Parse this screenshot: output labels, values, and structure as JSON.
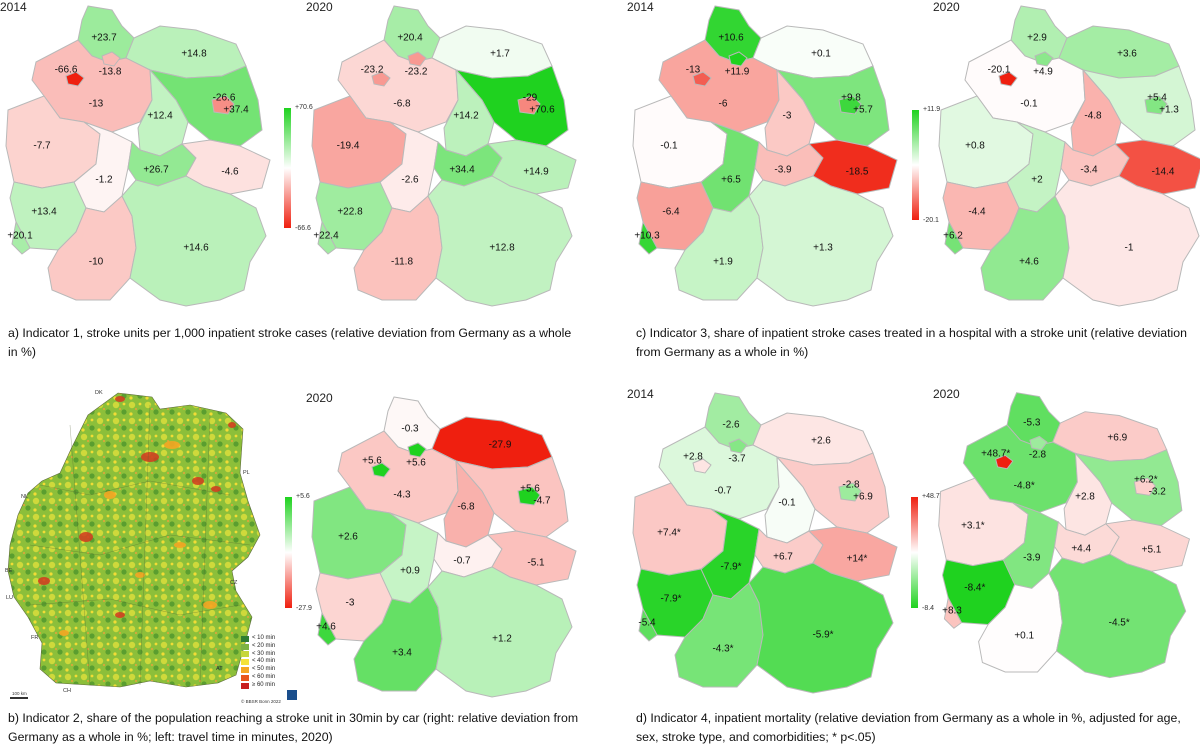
{
  "maps": [
    {
      "id": "a2014",
      "year": "2014",
      "states": {
        "SH": "+23.7",
        "MV": "+14.8",
        "HB": "-66.6",
        "HH": "-13.8",
        "NI": "-13",
        "BB": "+37.4",
        "BE": "-26.6",
        "ST": "+12.4",
        "NW": "-7.7",
        "HE": "-1.2",
        "TH": "+26.7",
        "SN": "-4.6",
        "RP": "+13.4",
        "SL": "+20.1",
        "BW": "-10",
        "BY": "+14.6"
      }
    },
    {
      "id": "a2020",
      "year": "2020",
      "states": {
        "SH": "+20.4",
        "MV": "+1.7",
        "HB": "-23.2",
        "HH": "-23.2",
        "NI": "-6.8",
        "BB": "+70.6",
        "BE": "-29",
        "ST": "+14.2",
        "NW": "-19.4",
        "HE": "-2.6",
        "TH": "+34.4",
        "SN": "+14.9",
        "RP": "+22.8",
        "SL": "+22.4",
        "BW": "-11.8",
        "BY": "+12.8"
      }
    },
    {
      "id": "c2014",
      "year": "2014",
      "states": {
        "SH": "+10.6",
        "MV": "+0.1",
        "HB": "-13",
        "HH": "+11.9",
        "NI": "-6",
        "BB": "+5.7",
        "BE": "+9.8",
        "ST": "-3",
        "NW": "-0.1",
        "HE": "+6.5",
        "TH": "-3.9",
        "SN": "-18.5",
        "RP": "-6.4",
        "SL": "+10.3",
        "BW": "+1.9",
        "BY": "+1.3"
      }
    },
    {
      "id": "c2020",
      "year": "2020",
      "states": {
        "SH": "+2.9",
        "MV": "+3.6",
        "HB": "-20.1",
        "HH": "+4.9",
        "NI": "-0.1",
        "BB": "+1.3",
        "BE": "+5.4",
        "ST": "-4.8",
        "NW": "+0.8",
        "HE": "+2",
        "TH": "-3.4",
        "SN": "-14.4",
        "RP": "-4.4",
        "SL": "+6.2",
        "BW": "+4.6",
        "BY": "-1"
      }
    },
    {
      "id": "b2020",
      "year": "2020",
      "states": {
        "SH": "-0.3",
        "MV": "-27.9",
        "HB": "+5.6",
        "HH": "+5.6",
        "NI": "-4.3",
        "BB": "-4.7",
        "BE": "+5.6",
        "ST": "-6.8",
        "NW": "+2.6",
        "HE": "+0.9",
        "TH": "-0.7",
        "SN": "-5.1",
        "RP": "-3",
        "SL": "+4.6",
        "BW": "+3.4",
        "BY": "+1.2"
      }
    },
    {
      "id": "d2014",
      "year": "2014",
      "states": {
        "SH": "-2.6",
        "MV": "+2.6",
        "HB": "+2.8",
        "HH": "-3.7",
        "NI": "-0.7",
        "BB": "+6.9",
        "BE": "-2.8",
        "ST": "-0.1",
        "NW": "+7.4*",
        "HE": "-7.9*",
        "TH": "+6.7",
        "SN": "+14*",
        "RP": "-7.9*",
        "SL": "-5.4",
        "BW": "-4.3*",
        "BY": "-5.9*"
      }
    },
    {
      "id": "d2020",
      "year": "2020",
      "states": {
        "SH": "-5.3",
        "MV": "+6.9",
        "HB": "+48.7*",
        "HH": "-2.8",
        "NI": "-4.8*",
        "BB": "-3.2",
        "BE": "+6.2*",
        "ST": "+2.8",
        "NW": "+3.1*",
        "HE": "-3.9",
        "TH": "+4.4",
        "SN": "+5.1",
        "RP": "-8.4*",
        "SL": "+8.3",
        "BW": "+0.1",
        "BY": "-4.5*"
      }
    }
  ],
  "legends": {
    "a": {
      "max": "+70.6",
      "min": "-66.6"
    },
    "c": {
      "max": "+11.9",
      "min": "-20.1"
    },
    "b": {
      "max": "+5.6",
      "min": "-27.9"
    },
    "d": {
      "max": "+48.7",
      "min": "-8.4"
    }
  },
  "colors": {
    "good": "#1fd21f",
    "bad": "#ef1f0f",
    "neutral": "#ffffff"
  },
  "captions": {
    "a": "a) Indicator 1, stroke units per 1,000 inpatient stroke cases (relative deviation from Germany as a whole in %)",
    "b": "b) Indicator 2, share of the population reaching a stroke unit in 30min by car (right: relative deviation from Germany as a whole in %; left: travel time in minutes, 2020)",
    "c": "c) Indicator 3, share of inpatient stroke cases treated in a hospital with a stroke unit (relative deviation from Germany as a whole in %)",
    "d": "d) Indicator 4, inpatient mortality (relative deviation from Germany as a whole in %, adjusted for age, sex, stroke type, and comorbidities; * p<.05)"
  },
  "travel_map": {
    "legend": [
      {
        "label": "< 10 min",
        "color": "#2e7d32"
      },
      {
        "label": "< 20 min",
        "color": "#7cb342"
      },
      {
        "label": "< 30 min",
        "color": "#c6d63a"
      },
      {
        "label": "< 40 min",
        "color": "#f4e23a"
      },
      {
        "label": "< 50 min",
        "color": "#f5a623"
      },
      {
        "label": "< 60 min",
        "color": "#e8561d"
      },
      {
        "label": "≥ 60 min",
        "color": "#c81e1e"
      }
    ],
    "countries": {
      "DK": "DK",
      "PL": "PL",
      "NL": "NL",
      "BE": "BE",
      "LU": "LU",
      "FR": "FR",
      "CH": "CH",
      "AT": "AT",
      "CZ": "CZ"
    },
    "credit": "© BBSR Bonn 2022",
    "scale": "100 km"
  }
}
